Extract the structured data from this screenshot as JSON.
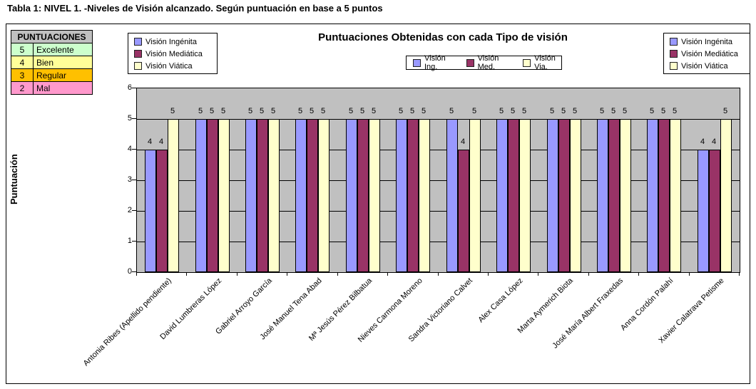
{
  "page": {
    "title": "Tabla 1: NIVEL 1. -Niveles de Visión alcanzado. Según puntuación en base a 5 puntos"
  },
  "scoring_table": {
    "header": "PUNTUACIONES",
    "rows": [
      {
        "score": "5",
        "label": "Excelente",
        "color": "#ccffcc"
      },
      {
        "score": "4",
        "label": "Bien",
        "color": "#ffff99"
      },
      {
        "score": "3",
        "label": "Regular",
        "color": "#ffc000"
      },
      {
        "score": "2",
        "label": "Mal",
        "color": "#ff99cc"
      }
    ]
  },
  "chart_data": {
    "type": "bar",
    "title": "Puntuaciones Obtenidas con cada Tipo de visión",
    "ylabel": "Puntuación",
    "ylim": [
      0,
      6
    ],
    "yticks": [
      0,
      1,
      2,
      3,
      4,
      5,
      6
    ],
    "grid": true,
    "plot_background": "#c0c0c0",
    "data_labels": true,
    "legend_position": "top-inner-and-side-boxes",
    "categories": [
      "Antonia Ribes (Apellido pendiente)",
      "David Lumbreras López",
      "Gabriel Arroyo García",
      "José Manuel Tena Abad",
      "Mª Jesús Pérez Bilbatua",
      "Nieves Carmona Moreno",
      "Sandra Victoriano Calvet",
      "Alex Casa López",
      "Marta Aymerich Biota",
      "José María Albert Fraxedas",
      "Anna Cordón Palahí",
      "Xavier Calatrava Petisme"
    ],
    "series": [
      {
        "name": "Visión Ingénita",
        "short_label": "Visión Ing.",
        "color": "#9999ff",
        "values": [
          4,
          5,
          5,
          5,
          5,
          5,
          5,
          5,
          5,
          5,
          5,
          4
        ]
      },
      {
        "name": "Visión Mediática",
        "short_label": "Visión Med.",
        "color": "#993366",
        "values": [
          4,
          5,
          5,
          5,
          5,
          5,
          4,
          5,
          5,
          5,
          5,
          4
        ]
      },
      {
        "name": "Visión Viática",
        "short_label": "Visión Via.",
        "color": "#ffffcc",
        "values": [
          5,
          5,
          5,
          5,
          5,
          5,
          5,
          5,
          5,
          5,
          5,
          5
        ]
      }
    ]
  }
}
